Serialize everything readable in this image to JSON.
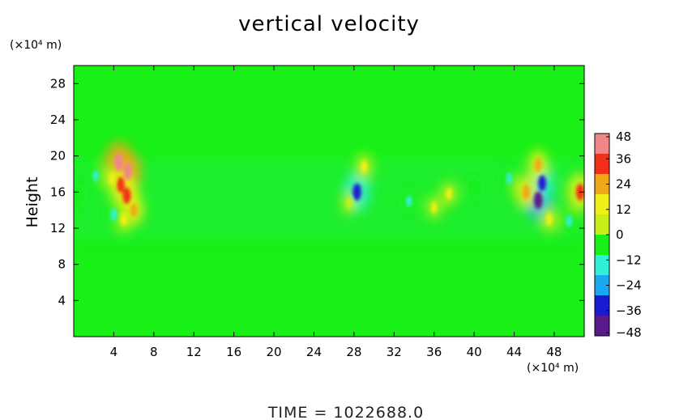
{
  "chart_data": {
    "type": "heatmap",
    "title": "vertical velocity",
    "xlabel": "",
    "ylabel": "Height",
    "x_unit_label": "(×10⁴ m)",
    "y_unit_label": "(×10⁴ m)",
    "xlim": [
      0,
      51
    ],
    "ylim": [
      0,
      30
    ],
    "x_ticks": [
      4,
      8,
      12,
      16,
      20,
      24,
      28,
      32,
      36,
      40,
      44,
      48
    ],
    "y_ticks": [
      4,
      8,
      12,
      16,
      20,
      24,
      28
    ],
    "colorbar": {
      "ticks": [
        48,
        36,
        24,
        12,
        0,
        -12,
        -24,
        -36,
        -48
      ],
      "tick_labels": [
        "48",
        "36",
        "24",
        "12",
        "0",
        "−12",
        "−24",
        "−36",
        "−48"
      ],
      "range": [
        -48,
        48
      ],
      "colors": [
        "#5a1a8c",
        "#1a1ad0",
        "#1aa8f0",
        "#30f0d8",
        "#18f018",
        "#c8f018",
        "#f0f018",
        "#f0a818",
        "#f03018",
        "#f08888"
      ]
    },
    "background_value": 0,
    "features": [
      {
        "x": 4.5,
        "y": 19.3,
        "value": 44
      },
      {
        "x": 5.4,
        "y": 18.3,
        "value": 40
      },
      {
        "x": 4.7,
        "y": 16.8,
        "value": 30
      },
      {
        "x": 5.3,
        "y": 15.6,
        "value": 34
      },
      {
        "x": 6.0,
        "y": 14.0,
        "value": 22
      },
      {
        "x": 5.0,
        "y": 13.0,
        "value": 18
      },
      {
        "x": 3.8,
        "y": 17.5,
        "value": 14
      },
      {
        "x": 2.2,
        "y": 17.8,
        "value": -10
      },
      {
        "x": 0.4,
        "y": 15.5,
        "value": -8
      },
      {
        "x": 4.0,
        "y": 13.5,
        "value": -16
      },
      {
        "x": 28.3,
        "y": 16.0,
        "value": -38
      },
      {
        "x": 29.0,
        "y": 18.8,
        "value": 16
      },
      {
        "x": 27.5,
        "y": 14.8,
        "value": 8
      },
      {
        "x": 33.5,
        "y": 15.0,
        "value": -10
      },
      {
        "x": 36.0,
        "y": 14.3,
        "value": 10
      },
      {
        "x": 37.5,
        "y": 15.8,
        "value": 12
      },
      {
        "x": 40.0,
        "y": 16.5,
        "value": -8
      },
      {
        "x": 46.4,
        "y": 15.1,
        "value": -40
      },
      {
        "x": 46.8,
        "y": 17.0,
        "value": -32
      },
      {
        "x": 45.2,
        "y": 16.0,
        "value": 28
      },
      {
        "x": 46.4,
        "y": 19.0,
        "value": 22
      },
      {
        "x": 47.5,
        "y": 13.0,
        "value": 16
      },
      {
        "x": 50.6,
        "y": 16.0,
        "value": 36
      },
      {
        "x": 43.5,
        "y": 17.5,
        "value": -12
      },
      {
        "x": 49.5,
        "y": 12.8,
        "value": -14
      }
    ]
  },
  "footer": {
    "time_label": "TIME  =  1022688.0"
  }
}
